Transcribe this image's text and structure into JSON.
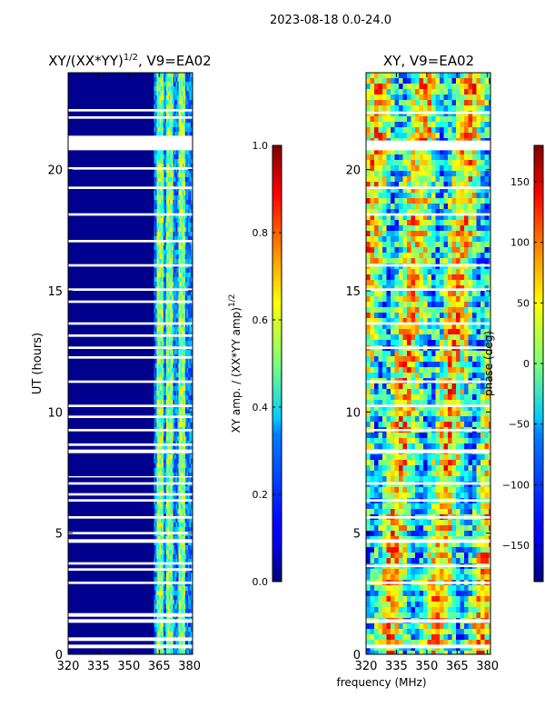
{
  "figure_title": "2023-08-18 0.0-24.0",
  "chart_data": [
    {
      "type": "heatmap",
      "title_main": "XY/(XX*YY)",
      "title_sup": "1/2",
      "title_rest": ", V9=EA02",
      "ylabel": "UT (hours)",
      "xlim": [
        320,
        381.5
      ],
      "ylim": [
        0,
        24
      ],
      "xticks": [
        320,
        335,
        350,
        365,
        380
      ],
      "yticks": [
        0,
        5,
        10,
        15,
        20
      ],
      "gap_rows_hours": [
        [
          0.25,
          0.4
        ],
        [
          0.55,
          0.7
        ],
        [
          1.3,
          1.45
        ],
        [
          1.55,
          1.7
        ],
        [
          2.9,
          3.0
        ],
        [
          3.45,
          3.55
        ],
        [
          3.7,
          3.8
        ],
        [
          4.6,
          4.75
        ],
        [
          4.95,
          5.05
        ],
        [
          5.6,
          5.7
        ],
        [
          6.3,
          6.4
        ],
        [
          6.55,
          6.65
        ],
        [
          7.0,
          7.1
        ],
        [
          7.3,
          7.35
        ],
        [
          8.3,
          8.45
        ],
        [
          8.6,
          8.7
        ],
        [
          9.2,
          9.3
        ],
        [
          9.75,
          9.85
        ],
        [
          10.2,
          10.3
        ],
        [
          11.2,
          11.3
        ],
        [
          12.2,
          12.3
        ],
        [
          12.6,
          12.7
        ],
        [
          13.1,
          13.2
        ],
        [
          13.6,
          13.7
        ],
        [
          14.5,
          14.6
        ],
        [
          15.0,
          15.1
        ],
        [
          16.0,
          16.1
        ],
        [
          17.0,
          17.1
        ],
        [
          18.1,
          18.2
        ],
        [
          19.2,
          19.3
        ],
        [
          20.0,
          20.1
        ],
        [
          20.8,
          21.4
        ],
        [
          22.1,
          22.2
        ],
        [
          22.4,
          22.5
        ]
      ],
      "colorbar": {
        "label_main": "XY amp. / (XX*YY amp)",
        "label_sup": "1/2",
        "min": 0.0,
        "max": 1.0,
        "ticks": [
          "0.0",
          "0.2",
          "0.4",
          "0.6",
          "0.8",
          "1.0"
        ],
        "tick_values": [
          0.0,
          0.2,
          0.4,
          0.6,
          0.8,
          1.0
        ]
      }
    },
    {
      "type": "heatmap",
      "title": "XY, V9=EA02",
      "xlabel": "frequency (MHz)",
      "xlim": [
        320,
        381.5
      ],
      "ylim": [
        0,
        24
      ],
      "xticks": [
        320,
        335,
        350,
        365,
        380
      ],
      "yticks": [
        0,
        5,
        10,
        15,
        20
      ],
      "gap_rows_hours": [
        [
          0.25,
          0.4
        ],
        [
          1.3,
          1.45
        ],
        [
          2.9,
          3.0
        ],
        [
          3.6,
          3.7
        ],
        [
          4.6,
          4.75
        ],
        [
          5.6,
          5.7
        ],
        [
          6.3,
          6.4
        ],
        [
          7.0,
          7.1
        ],
        [
          8.3,
          8.45
        ],
        [
          9.2,
          9.3
        ],
        [
          10.2,
          10.3
        ],
        [
          11.2,
          11.3
        ],
        [
          12.6,
          12.7
        ],
        [
          13.6,
          13.7
        ],
        [
          15.0,
          15.1
        ],
        [
          16.0,
          16.1
        ],
        [
          18.1,
          18.2
        ],
        [
          19.2,
          19.3
        ],
        [
          20.8,
          21.2
        ],
        [
          22.3,
          22.4
        ]
      ],
      "colorbar": {
        "label": "phase (deg)",
        "min": -180,
        "max": 180,
        "ticks": [
          "−150",
          "−100",
          "−50",
          "0",
          "50",
          "100",
          "150"
        ],
        "tick_values": [
          -150,
          -100,
          -50,
          0,
          50,
          100,
          150
        ]
      }
    }
  ]
}
